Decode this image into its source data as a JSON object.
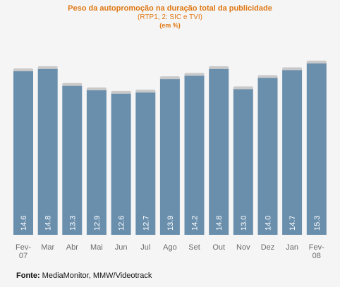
{
  "chart_data": {
    "type": "bar",
    "title": "Peso da autopromoção na duração total da publicidade",
    "subtitle": "(RTP1, 2: SIC e TVI)",
    "unit_label": "(em %)",
    "categories": [
      [
        "Fev-",
        "07"
      ],
      [
        "Mar"
      ],
      [
        "Abr"
      ],
      [
        "Mai"
      ],
      [
        "Jun"
      ],
      [
        "Jul"
      ],
      [
        "Ago"
      ],
      [
        "Set"
      ],
      [
        "Out"
      ],
      [
        "Nov"
      ],
      [
        "Dez"
      ],
      [
        "Jan"
      ],
      [
        "Fev-",
        "08"
      ]
    ],
    "values": [
      14.6,
      14.8,
      13.3,
      12.9,
      12.6,
      12.7,
      13.9,
      14.2,
      14.8,
      13.0,
      14.0,
      14.7,
      15.3
    ],
    "value_labels": [
      "14.6",
      "14.8",
      "13.3",
      "12.9",
      "12.6",
      "12.7",
      "13.9",
      "14.2",
      "14.8",
      "13.0",
      "14.0",
      "14.7",
      "15.3"
    ],
    "ylim": [
      0,
      15.3
    ],
    "grid": false,
    "legend": "none",
    "colors": {
      "bar": "#6a8fad",
      "bar_cap": "#c9c9c9",
      "value_text": "#ffffff",
      "axis_text": "#6b6b6b",
      "title": "#e07814"
    }
  },
  "footer": {
    "source_label": "Fonte:",
    "source_text": "MediaMonitor, MMW/Videotrack"
  }
}
